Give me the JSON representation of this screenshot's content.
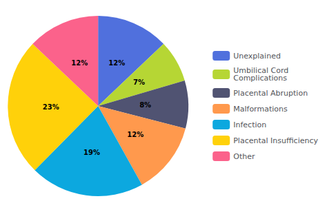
{
  "chart_data": {
    "type": "pie",
    "categories": [
      "Unexplained",
      "Umbilical Cord\nComplications",
      "Placental Abruption",
      "Malformations",
      "Infection",
      "Placental Insufficiency",
      "Other"
    ],
    "values": [
      12,
      7,
      8,
      12,
      19,
      23,
      12
    ],
    "value_labels": [
      "12%",
      "7%",
      "8%",
      "12%",
      "19%",
      "23%",
      "12%"
    ],
    "data_labels": true,
    "legend": "right"
  }
}
